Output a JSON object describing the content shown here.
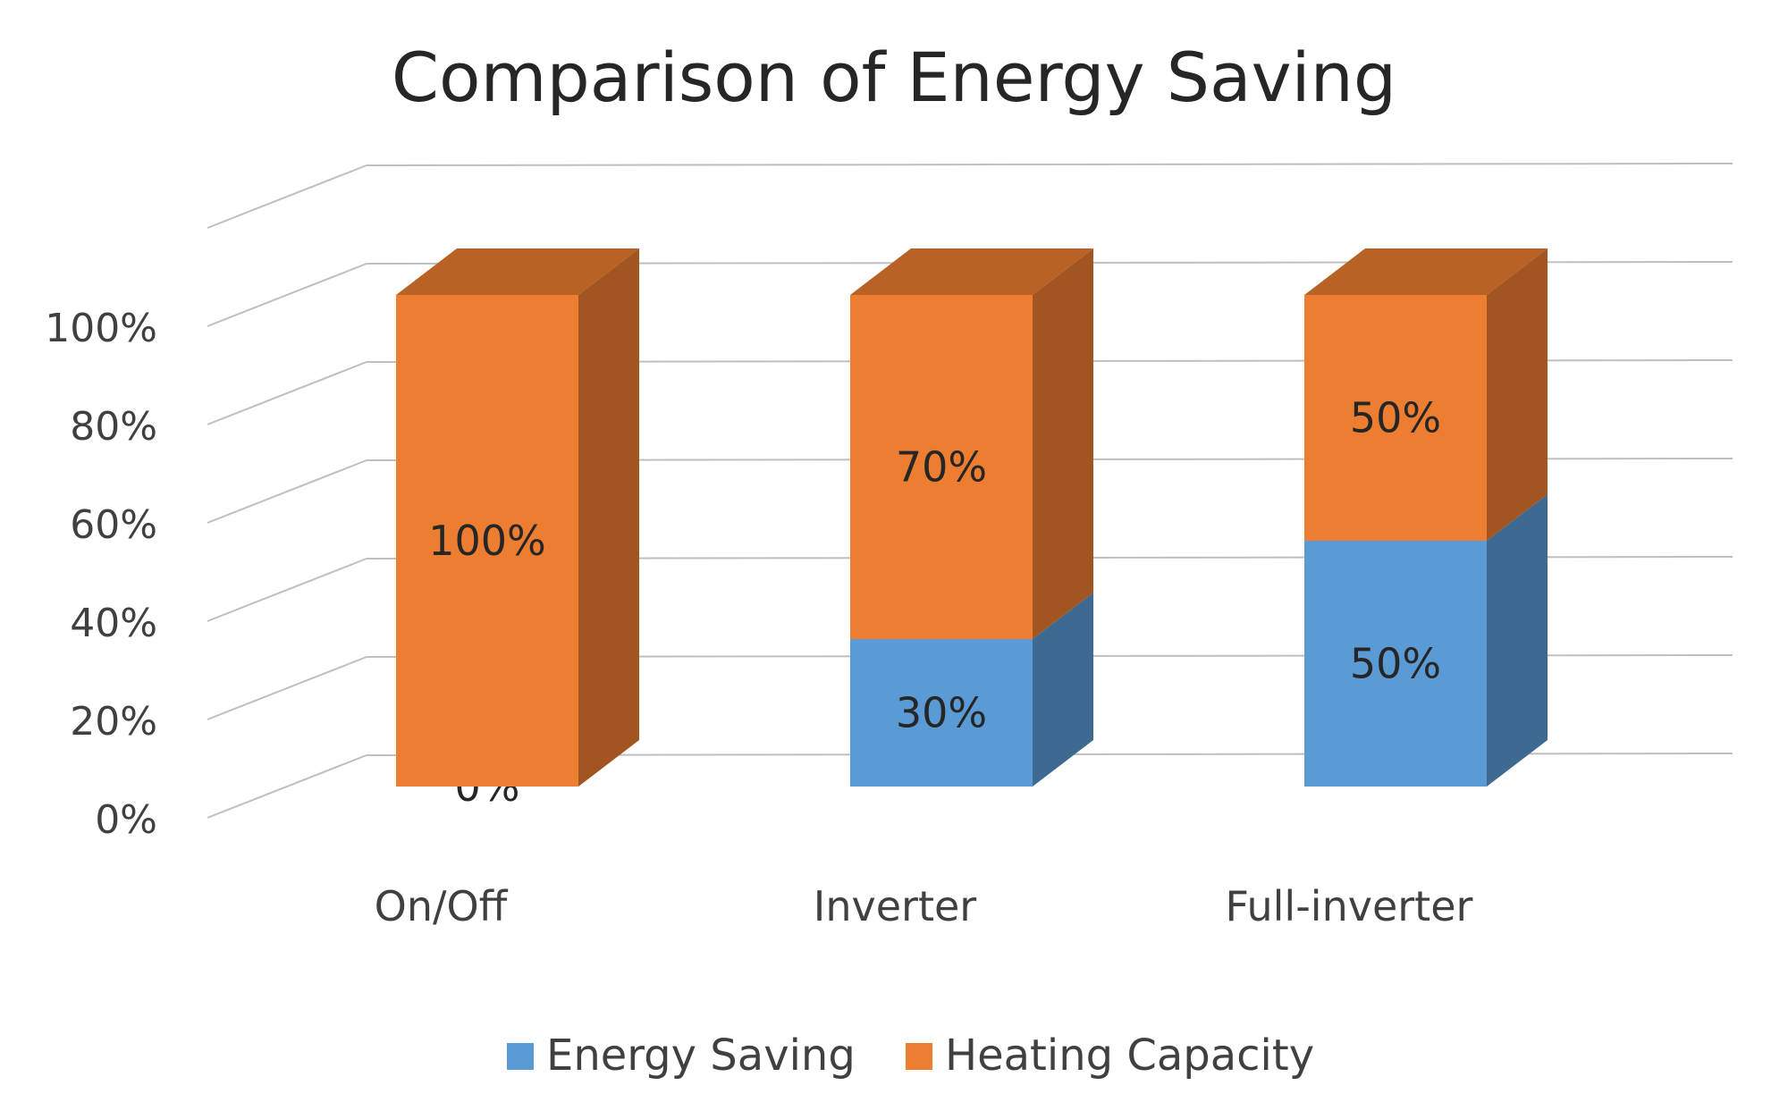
{
  "chart_data": {
    "type": "bar",
    "stacked": true,
    "three_d": true,
    "title": "Comparison of Energy Saving",
    "categories": [
      "On/Off",
      "Inverter",
      "Full-inverter"
    ],
    "series": [
      {
        "name": "Energy Saving",
        "values": [
          0,
          30,
          50
        ],
        "labels": [
          "0%",
          "30%",
          "50%"
        ],
        "color": "#5b9bd5"
      },
      {
        "name": "Heating Capacity",
        "values": [
          100,
          70,
          50
        ],
        "labels": [
          "100%",
          "70%",
          "50%"
        ],
        "color": "#ed7d31"
      }
    ],
    "y_ticks": [
      "0%",
      "20%",
      "40%",
      "60%",
      "80%",
      "100%"
    ],
    "ylim": [
      0,
      100
    ],
    "grid": true,
    "legend_position": "bottom"
  }
}
